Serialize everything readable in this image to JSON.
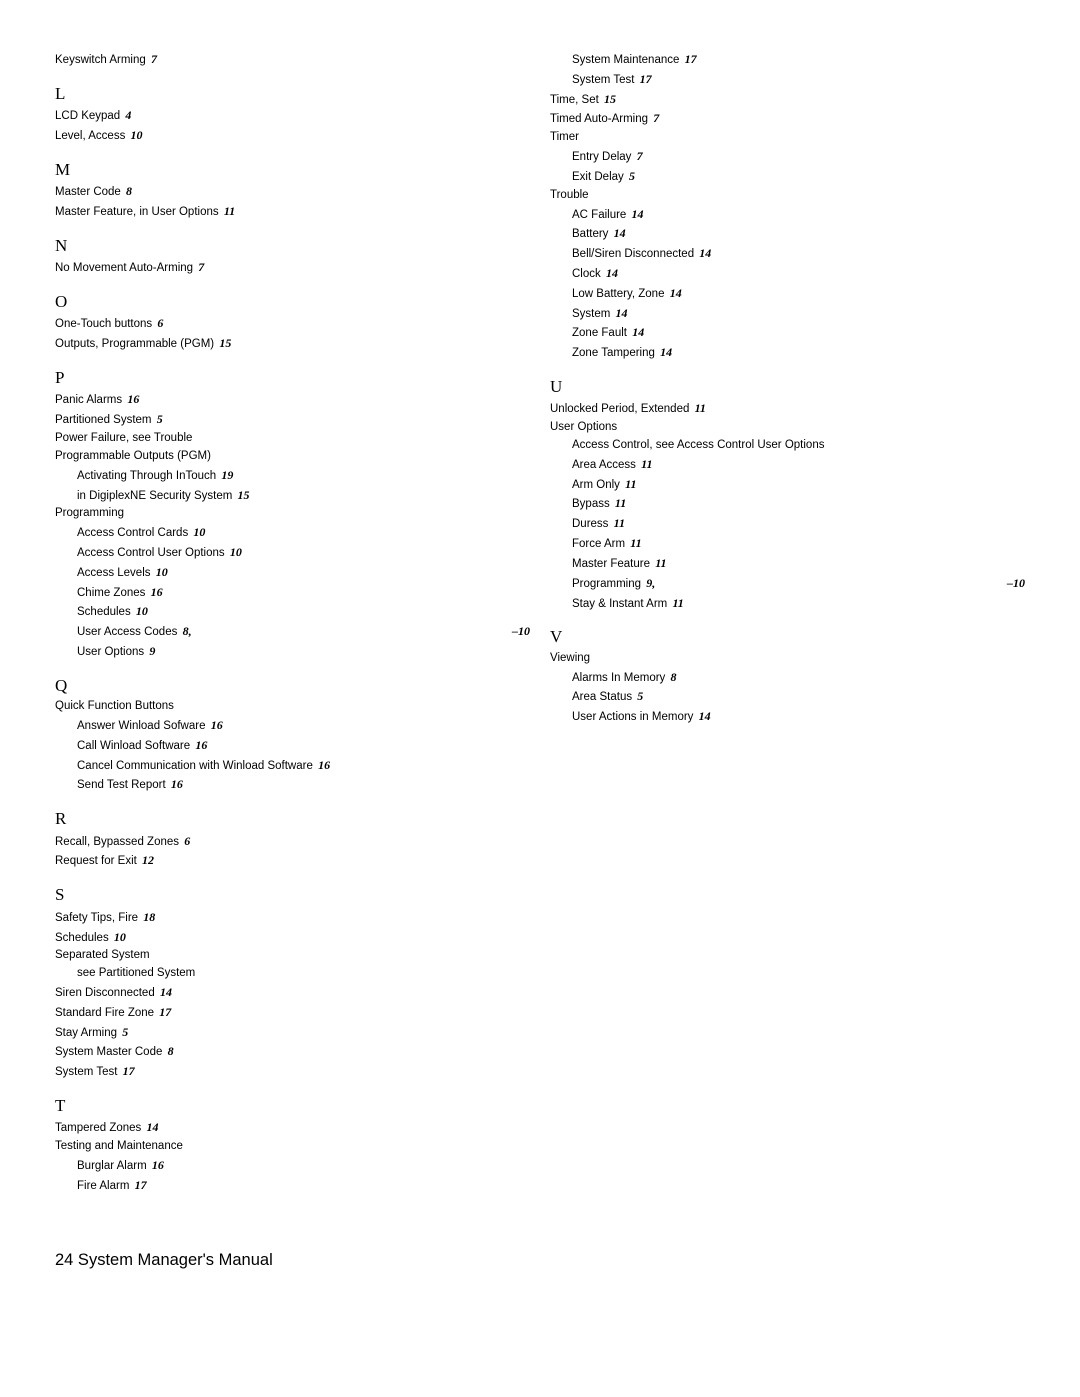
{
  "leftColumn": [
    {
      "type": "entry",
      "text": "Keyswitch Arming",
      "page": "7"
    },
    {
      "type": "letter",
      "text": "L"
    },
    {
      "type": "entry",
      "text": "LCD Keypad",
      "page": "4"
    },
    {
      "type": "entry",
      "text": "Level, Access",
      "page": "10"
    },
    {
      "type": "letter",
      "text": "M"
    },
    {
      "type": "entry",
      "text": "Master Code",
      "page": "8"
    },
    {
      "type": "entry",
      "text": "Master Feature, in User Options",
      "page": "11"
    },
    {
      "type": "letter",
      "text": "N"
    },
    {
      "type": "entry",
      "text": "No Movement Auto-Arming",
      "page": "7"
    },
    {
      "type": "letter",
      "text": "O"
    },
    {
      "type": "entry",
      "text": "One-Touch buttons",
      "page": "6"
    },
    {
      "type": "entry",
      "text": "Outputs, Programmable (PGM)",
      "page": "15"
    },
    {
      "type": "letter",
      "text": "P"
    },
    {
      "type": "entry",
      "text": "Panic Alarms",
      "page": "16"
    },
    {
      "type": "entry",
      "text": "Partitioned System",
      "page": "5"
    },
    {
      "type": "entry",
      "text": "Power Failure, see Trouble"
    },
    {
      "type": "entry",
      "text": "Programmable Outputs (PGM)"
    },
    {
      "type": "entry",
      "indent": 1,
      "text": "Activating Through InTouch",
      "page": "19"
    },
    {
      "type": "entry",
      "indent": 1,
      "text": "in DigiplexNE Security System",
      "page": "15"
    },
    {
      "type": "entry",
      "text": "Programming"
    },
    {
      "type": "entry",
      "indent": 1,
      "text": "Access Control Cards",
      "page": "10"
    },
    {
      "type": "entry",
      "indent": 1,
      "text": "Access Control User Options",
      "page": "10"
    },
    {
      "type": "entry",
      "indent": 1,
      "text": "Access Levels",
      "page": "10"
    },
    {
      "type": "entry",
      "indent": 1,
      "text": "Chime Zones",
      "page": "16"
    },
    {
      "type": "entry",
      "indent": 1,
      "text": "Schedules",
      "page": "10"
    },
    {
      "type": "entry",
      "indent": 1,
      "text": "User Access Codes",
      "page": "8,",
      "right": "–10"
    },
    {
      "type": "entry",
      "indent": 1,
      "text": "User Options",
      "page": "9"
    },
    {
      "type": "letter",
      "text": "Q"
    },
    {
      "type": "entry",
      "text": "Quick Function Buttons"
    },
    {
      "type": "entry",
      "indent": 1,
      "text": "Answer Winload Sofware",
      "page": "16"
    },
    {
      "type": "entry",
      "indent": 1,
      "text": "Call Winload Software",
      "page": "16"
    },
    {
      "type": "entry",
      "indent": 1,
      "text": "Cancel Communication with Winload Software",
      "page": "16"
    },
    {
      "type": "entry",
      "indent": 1,
      "text": "Send Test Report",
      "page": "16"
    },
    {
      "type": "letter",
      "text": "R"
    },
    {
      "type": "entry",
      "text": "Recall, Bypassed Zones",
      "page": "6"
    },
    {
      "type": "entry",
      "text": "Request for Exit",
      "page": "12"
    },
    {
      "type": "letter",
      "text": "S"
    },
    {
      "type": "entry",
      "text": "Safety Tips, Fire",
      "page": "18"
    },
    {
      "type": "entry",
      "text": "Schedules",
      "page": "10"
    },
    {
      "type": "entry",
      "text": "Separated System"
    },
    {
      "type": "entry",
      "indent": 1,
      "text": "see Partitioned System"
    },
    {
      "type": "entry",
      "text": "Siren Disconnected",
      "page": "14"
    },
    {
      "type": "entry",
      "text": "Standard Fire Zone",
      "page": "17"
    },
    {
      "type": "entry",
      "text": "Stay Arming",
      "page": "5"
    },
    {
      "type": "entry",
      "text": "System Master Code",
      "page": "8"
    },
    {
      "type": "entry",
      "text": "System Test",
      "page": "17"
    },
    {
      "type": "letter",
      "text": "T"
    },
    {
      "type": "entry",
      "text": "Tampered Zones",
      "page": "14"
    },
    {
      "type": "entry",
      "text": "Testing and Maintenance"
    },
    {
      "type": "entry",
      "indent": 1,
      "text": "Burglar Alarm",
      "page": "16"
    },
    {
      "type": "entry",
      "indent": 1,
      "text": "Fire Alarm",
      "page": "17"
    }
  ],
  "rightColumn": [
    {
      "type": "entry",
      "indent": 1,
      "text": "System Maintenance",
      "page": "17"
    },
    {
      "type": "entry",
      "indent": 1,
      "text": "System Test",
      "page": "17"
    },
    {
      "type": "entry",
      "text": "Time, Set",
      "page": "15"
    },
    {
      "type": "entry",
      "text": "Timed Auto-Arming",
      "page": "7"
    },
    {
      "type": "entry",
      "text": "Timer"
    },
    {
      "type": "entry",
      "indent": 1,
      "text": "Entry Delay",
      "page": "7"
    },
    {
      "type": "entry",
      "indent": 1,
      "text": "Exit Delay",
      "page": "5"
    },
    {
      "type": "entry",
      "text": "Trouble"
    },
    {
      "type": "entry",
      "indent": 1,
      "text": "AC Failure",
      "page": "14"
    },
    {
      "type": "entry",
      "indent": 1,
      "text": "Battery",
      "page": "14"
    },
    {
      "type": "entry",
      "indent": 1,
      "text": "Bell/Siren Disconnected",
      "page": "14"
    },
    {
      "type": "entry",
      "indent": 1,
      "text": "Clock",
      "page": "14"
    },
    {
      "type": "entry",
      "indent": 1,
      "text": "Low Battery, Zone",
      "page": "14"
    },
    {
      "type": "entry",
      "indent": 1,
      "text": "System",
      "page": "14"
    },
    {
      "type": "entry",
      "indent": 1,
      "text": "Zone Fault",
      "page": "14"
    },
    {
      "type": "entry",
      "indent": 1,
      "text": "Zone Tampering",
      "page": "14"
    },
    {
      "type": "letter",
      "text": "U"
    },
    {
      "type": "entry",
      "text": "Unlocked Period, Extended",
      "page": "11"
    },
    {
      "type": "entry",
      "text": "User Options"
    },
    {
      "type": "entry",
      "indent": 1,
      "text": "Access Control, see Access Control User Options"
    },
    {
      "type": "entry",
      "indent": 1,
      "text": "Area Access",
      "page": "11"
    },
    {
      "type": "entry",
      "indent": 1,
      "text": "Arm Only",
      "page": "11"
    },
    {
      "type": "entry",
      "indent": 1,
      "text": "Bypass",
      "page": "11"
    },
    {
      "type": "entry",
      "indent": 1,
      "text": "Duress",
      "page": "11"
    },
    {
      "type": "entry",
      "indent": 1,
      "text": "Force Arm",
      "page": "11"
    },
    {
      "type": "entry",
      "indent": 1,
      "text": "Master Feature",
      "page": "11"
    },
    {
      "type": "entry",
      "indent": 1,
      "text": "Programming",
      "page": "9,",
      "right": "–10"
    },
    {
      "type": "entry",
      "indent": 1,
      "text": "Stay & Instant Arm",
      "page": "11"
    },
    {
      "type": "letter",
      "text": "V"
    },
    {
      "type": "entry",
      "text": "Viewing"
    },
    {
      "type": "entry",
      "indent": 1,
      "text": "Alarms In Memory",
      "page": "8"
    },
    {
      "type": "entry",
      "indent": 1,
      "text": "Area Status",
      "page": "5"
    },
    {
      "type": "entry",
      "indent": 1,
      "text": "User Actions in Memory",
      "page": "14"
    }
  ],
  "footer": "24 System Manager's Manual"
}
